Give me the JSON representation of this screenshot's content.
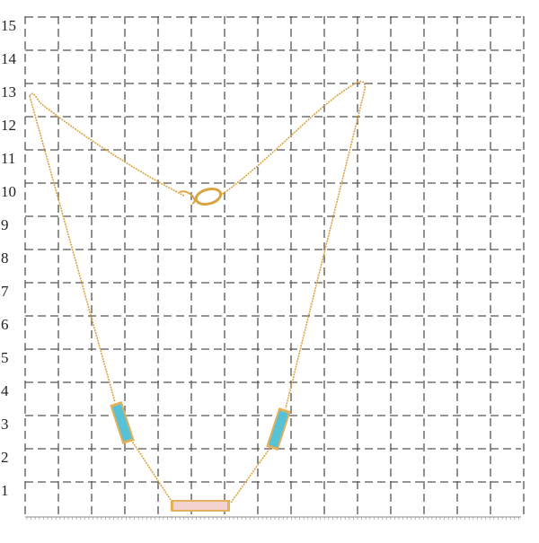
{
  "scale": {
    "labels": [
      "1",
      "2",
      "3",
      "4",
      "5",
      "6",
      "7",
      "8",
      "9",
      "10",
      "11",
      "12",
      "13",
      "14",
      "15"
    ]
  }
}
